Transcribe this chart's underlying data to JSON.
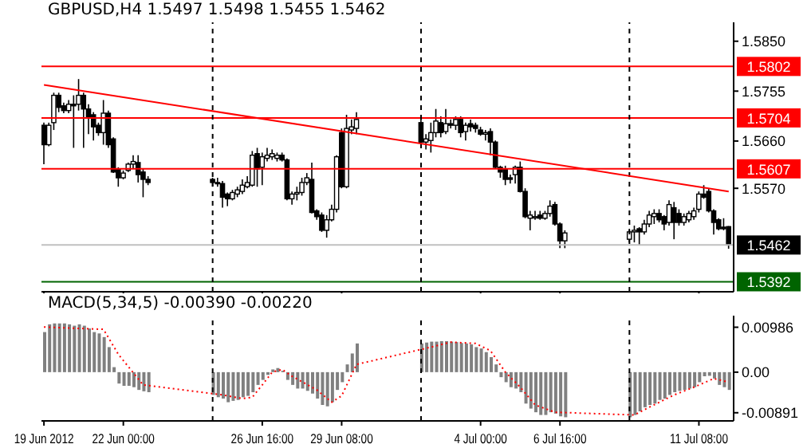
{
  "chart_data": [
    {
      "type": "candlestick",
      "title": "GBPUSD,H4  1.5497 1.5498 1.5455 1.5462",
      "tick_labels": "y",
      "xlim": [
        "2012-06-19T06:00",
        "2012-07-12T12:00"
      ],
      "xticks": [
        {
          "value": "2012-06-19T08:00",
          "label": null
        },
        {
          "value": "2012-06-22T00:00",
          "label": null
        },
        {
          "value": "2012-06-26T16:00",
          "label": null
        },
        {
          "value": "2012-06-29T08:00",
          "label": null
        },
        {
          "value": "2012-07-04T00:00",
          "label": null
        },
        {
          "value": "2012-07-06T16:00",
          "label": null
        },
        {
          "value": "2012-07-11T08:00",
          "label": null
        }
      ],
      "x": [
        "2012-06-19T08:00",
        "2012-06-19T12:00",
        "2012-06-19T16:00",
        "2012-06-19T20:00",
        "2012-06-20T00:00",
        "2012-06-20T04:00",
        "2012-06-20T08:00",
        "2012-06-20T12:00",
        "2012-06-20T16:00",
        "2012-06-20T20:00",
        "2012-06-21T00:00",
        "2012-06-21T04:00",
        "2012-06-21T08:00",
        "2012-06-21T12:00",
        "2012-06-21T16:00",
        "2012-06-21T20:00",
        "2012-06-22T00:00",
        "2012-06-22T04:00",
        "2012-06-22T08:00",
        "2012-06-22T12:00",
        "2012-06-22T16:00",
        "2012-06-22T20:00",
        "2012-06-25T00:00",
        "2012-06-25T04:00",
        "2012-06-25T08:00",
        "2012-06-25T12:00",
        "2012-06-25T16:00",
        "2012-06-25T20:00",
        "2012-06-26T00:00",
        "2012-06-26T04:00",
        "2012-06-26T08:00",
        "2012-06-26T12:00",
        "2012-06-26T16:00",
        "2012-06-26T20:00",
        "2012-06-27T00:00",
        "2012-06-27T04:00",
        "2012-06-27T08:00",
        "2012-06-27T12:00",
        "2012-06-27T16:00",
        "2012-06-27T20:00",
        "2012-06-28T00:00",
        "2012-06-28T04:00",
        "2012-06-28T08:00",
        "2012-06-28T12:00",
        "2012-06-28T16:00",
        "2012-06-28T20:00",
        "2012-06-29T00:00",
        "2012-06-29T04:00",
        "2012-06-29T08:00",
        "2012-06-29T12:00",
        "2012-06-29T16:00",
        "2012-06-29T20:00",
        "2012-07-02T00:00",
        "2012-07-02T04:00",
        "2012-07-02T08:00",
        "2012-07-02T12:00",
        "2012-07-02T16:00",
        "2012-07-02T20:00",
        "2012-07-03T00:00",
        "2012-07-03T04:00",
        "2012-07-03T08:00",
        "2012-07-03T12:00",
        "2012-07-03T16:00",
        "2012-07-03T20:00",
        "2012-07-04T00:00",
        "2012-07-04T04:00",
        "2012-07-04T08:00",
        "2012-07-04T12:00",
        "2012-07-04T16:00",
        "2012-07-04T20:00",
        "2012-07-05T00:00",
        "2012-07-05T04:00",
        "2012-07-05T08:00",
        "2012-07-05T12:00",
        "2012-07-05T16:00",
        "2012-07-05T20:00",
        "2012-07-06T00:00",
        "2012-07-06T04:00",
        "2012-07-06T08:00",
        "2012-07-06T12:00",
        "2012-07-06T16:00",
        "2012-07-06T20:00",
        "2012-07-09T00:00",
        "2012-07-09T04:00",
        "2012-07-09T08:00",
        "2012-07-09T12:00",
        "2012-07-09T16:00",
        "2012-07-09T20:00",
        "2012-07-10T00:00",
        "2012-07-10T04:00",
        "2012-07-10T08:00",
        "2012-07-10T12:00",
        "2012-07-10T16:00",
        "2012-07-10T20:00",
        "2012-07-11T00:00",
        "2012-07-11T04:00",
        "2012-07-11T08:00",
        "2012-07-11T12:00",
        "2012-07-11T16:00",
        "2012-07-11T20:00",
        "2012-07-12T00:00",
        "2012-07-12T04:00",
        "2012-07-12T08:00"
      ],
      "ohlc": [
        [
          1.569,
          1.5695,
          1.5616,
          1.5653
        ],
        [
          1.5653,
          1.5695,
          1.565,
          1.569
        ],
        [
          1.5695,
          1.5752,
          1.5681,
          1.5747
        ],
        [
          1.5747,
          1.5752,
          1.5715,
          1.5724
        ],
        [
          1.5727,
          1.5733,
          1.5713,
          1.5718
        ],
        [
          1.5718,
          1.5738,
          1.5713,
          1.573
        ],
        [
          1.573,
          1.5747,
          1.5647,
          1.5727
        ],
        [
          1.573,
          1.5778,
          1.5718,
          1.5747
        ],
        [
          1.5747,
          1.5752,
          1.5647,
          1.5721
        ],
        [
          1.5721,
          1.573,
          1.5673,
          1.5704
        ],
        [
          1.571,
          1.5715,
          1.5661,
          1.5687
        ],
        [
          1.569,
          1.5695,
          1.567,
          1.5676
        ],
        [
          1.5676,
          1.5738,
          1.5653,
          1.5713
        ],
        [
          1.5713,
          1.5718,
          1.5647,
          1.5653
        ],
        [
          1.5664,
          1.5667,
          1.5599,
          1.5601
        ],
        [
          1.5607,
          1.561,
          1.5573,
          1.559
        ],
        [
          1.559,
          1.5604,
          1.5587,
          1.5599
        ],
        [
          1.5604,
          1.5619,
          1.5601,
          1.5616
        ],
        [
          1.5616,
          1.5633,
          1.5607,
          1.5621
        ],
        [
          1.5619,
          1.5633,
          1.5581,
          1.5596
        ],
        [
          1.5601,
          1.5607,
          1.5553,
          1.5587
        ],
        [
          1.5587,
          1.5593,
          1.5576,
          1.5581
        ],
        [
          1.5587,
          1.559,
          1.5573,
          1.5581
        ],
        [
          1.5581,
          1.559,
          1.5573,
          1.5579
        ],
        [
          1.5579,
          1.5584,
          1.5533,
          1.5553
        ],
        [
          1.5559,
          1.5562,
          1.5536,
          1.555
        ],
        [
          1.555,
          1.5567,
          1.5547,
          1.5562
        ],
        [
          1.5559,
          1.5573,
          1.5553,
          1.5567
        ],
        [
          1.5564,
          1.5587,
          1.5559,
          1.5576
        ],
        [
          1.5573,
          1.5593,
          1.557,
          1.5581
        ],
        [
          1.5576,
          1.5641,
          1.5573,
          1.5633
        ],
        [
          1.5636,
          1.5647,
          1.5573,
          1.5607
        ],
        [
          1.561,
          1.5638,
          1.5576,
          1.563
        ],
        [
          1.5627,
          1.5647,
          1.5621,
          1.5633
        ],
        [
          1.563,
          1.5644,
          1.5624,
          1.5636
        ],
        [
          1.5627,
          1.5638,
          1.5621,
          1.5633
        ],
        [
          1.5633,
          1.5638,
          1.5621,
          1.5624
        ],
        [
          1.5624,
          1.5627,
          1.5547,
          1.555
        ],
        [
          1.555,
          1.5564,
          1.5539,
          1.5559
        ],
        [
          1.5559,
          1.5573,
          1.5547,
          1.5562
        ],
        [
          1.5562,
          1.559,
          1.5556,
          1.5581
        ],
        [
          1.5581,
          1.5599,
          1.5576,
          1.559
        ],
        [
          1.5587,
          1.5619,
          1.5522,
          1.5524
        ],
        [
          1.5527,
          1.553,
          1.551,
          1.5516
        ],
        [
          1.5519,
          1.5524,
          1.5487,
          1.549
        ],
        [
          1.549,
          1.5519,
          1.5476,
          1.551
        ],
        [
          1.551,
          1.5539,
          1.5507,
          1.553
        ],
        [
          1.553,
          1.5633,
          1.5524,
          1.563
        ],
        [
          1.5676,
          1.5684,
          1.557,
          1.5573
        ],
        [
          1.5573,
          1.571,
          1.557,
          1.5684
        ],
        [
          1.5681,
          1.5701,
          1.5673,
          1.5687
        ],
        [
          1.5684,
          1.5715,
          1.5673,
          1.5701
        ],
        [
          1.5695,
          1.5704,
          1.5653,
          1.5658
        ],
        [
          1.5658,
          1.5673,
          1.5644,
          1.5664
        ],
        [
          1.5661,
          1.5695,
          1.5638,
          1.5676
        ],
        [
          1.5676,
          1.5721,
          1.5667,
          1.5698
        ],
        [
          1.5695,
          1.5707,
          1.5667,
          1.5676
        ],
        [
          1.5678,
          1.5721,
          1.5673,
          1.5693
        ],
        [
          1.5693,
          1.5701,
          1.5684,
          1.569
        ],
        [
          1.569,
          1.5707,
          1.5681,
          1.5701
        ],
        [
          1.5701,
          1.5707,
          1.5667,
          1.5676
        ],
        [
          1.5678,
          1.5695,
          1.5661,
          1.569
        ],
        [
          1.5693,
          1.5701,
          1.5678,
          1.5687
        ],
        [
          1.569,
          1.5695,
          1.5676,
          1.5684
        ],
        [
          1.5681,
          1.5687,
          1.567,
          1.5673
        ],
        [
          1.5673,
          1.5681,
          1.5661,
          1.5676
        ],
        [
          1.5678,
          1.5684,
          1.5633,
          1.5658
        ],
        [
          1.5658,
          1.5661,
          1.5607,
          1.561
        ],
        [
          1.561,
          1.5613,
          1.559,
          1.5601
        ],
        [
          1.5607,
          1.5613,
          1.5576,
          1.5587
        ],
        [
          1.559,
          1.5596,
          1.5579,
          1.5587
        ],
        [
          1.5596,
          1.5613,
          1.5579,
          1.561
        ],
        [
          1.561,
          1.5621,
          1.5562,
          1.5564
        ],
        [
          1.5564,
          1.557,
          1.5513,
          1.5516
        ],
        [
          1.5513,
          1.5527,
          1.549,
          1.5519
        ],
        [
          1.5516,
          1.5527,
          1.551,
          1.5516
        ],
        [
          1.5519,
          1.5527,
          1.551,
          1.5513
        ],
        [
          1.5513,
          1.5527,
          1.551,
          1.5522
        ],
        [
          1.5522,
          1.5547,
          1.5516,
          1.5536
        ],
        [
          1.5539,
          1.5544,
          1.5499,
          1.5502
        ],
        [
          1.5502,
          1.5505,
          1.5456,
          1.547
        ],
        [
          1.547,
          1.549,
          1.5456,
          1.5485
        ],
        [
          1.5473,
          1.5493,
          1.5467,
          1.5487
        ],
        [
          1.5487,
          1.5499,
          1.5467,
          1.549
        ],
        [
          1.5493,
          1.5496,
          1.5462,
          1.5487
        ],
        [
          1.5487,
          1.551,
          1.5482,
          1.5502
        ],
        [
          1.5502,
          1.5527,
          1.5496,
          1.5519
        ],
        [
          1.5516,
          1.553,
          1.5502,
          1.5522
        ],
        [
          1.5522,
          1.553,
          1.5505,
          1.551
        ],
        [
          1.5516,
          1.5519,
          1.549,
          1.5502
        ],
        [
          1.5505,
          1.5547,
          1.5499,
          1.5539
        ],
        [
          1.5533,
          1.5544,
          1.5473,
          1.5505
        ],
        [
          1.5522,
          1.553,
          1.5499,
          1.5505
        ],
        [
          1.5505,
          1.5522,
          1.5499,
          1.5516
        ],
        [
          1.551,
          1.5527,
          1.5505,
          1.5522
        ],
        [
          1.5516,
          1.5533,
          1.551,
          1.5527
        ],
        [
          1.553,
          1.5564,
          1.5524,
          1.5559
        ],
        [
          1.5559,
          1.5576,
          1.555,
          1.5553
        ],
        [
          1.5564,
          1.557,
          1.5524,
          1.5527
        ],
        [
          1.5527,
          1.553,
          1.5482,
          1.5505
        ],
        [
          1.551,
          1.5513,
          1.549,
          1.5493
        ],
        [
          1.5496,
          1.5513,
          1.549,
          1.5493
        ],
        [
          1.5497,
          1.5498,
          1.5455,
          1.5462
        ]
      ],
      "series": [
        {
          "type": "line",
          "color": "#ff0000",
          "x": [
            "2012-06-19T08:00",
            "2012-07-12T08:00"
          ],
          "values": [
            1.5767,
            1.5564
          ]
        }
      ],
      "ylim": [
        1.5373,
        1.5886
      ],
      "yticks": [
        {
          "value": 1.585,
          "label": "1.5850"
        },
        1.5755,
        {
          "value": 1.566,
          "label": "1.5660"
        },
        {
          "value": 1.557,
          "label": "1.5570"
        }
      ],
      "ref_lines": [
        {
          "axis": "y",
          "value": 1.5802,
          "label": "1.5802",
          "color": "#ff0000"
        },
        {
          "axis": "y",
          "value": 1.5704,
          "label": "1.5704",
          "color": "#ff0000"
        },
        {
          "axis": "y",
          "value": 1.5607,
          "label": "1.5607",
          "color": "#ff0000"
        },
        {
          "axis": "y",
          "value": 1.5462,
          "label": "1.5462",
          "color": "#c0c0c0"
        },
        {
          "axis": "y",
          "value": 1.5392,
          "label": "1.5392",
          "color": "#006400"
        },
        {
          "axis": "x",
          "value": "2012-06-25T00:00",
          "color": "#000000",
          "line_style": "dashed"
        },
        {
          "axis": "x",
          "value": "2012-07-02T00:00",
          "color": "#000000",
          "line_style": "dashed"
        },
        {
          "axis": "x",
          "value": "2012-07-09T00:00",
          "color": "#000000",
          "line_style": "dashed"
        }
      ]
    },
    {
      "type": "bar",
      "title": "MACD(5,34,5) -0.00390 -0.00220",
      "xlim": [
        "2012-06-19T06:00",
        "2012-07-12T12:00"
      ],
      "x": [
        "2012-06-19T08:00",
        "2012-06-19T12:00",
        "2012-06-19T16:00",
        "2012-06-19T20:00",
        "2012-06-20T00:00",
        "2012-06-20T04:00",
        "2012-06-20T08:00",
        "2012-06-20T12:00",
        "2012-06-20T16:00",
        "2012-06-20T20:00",
        "2012-06-21T00:00",
        "2012-06-21T04:00",
        "2012-06-21T08:00",
        "2012-06-21T12:00",
        "2012-06-21T16:00",
        "2012-06-21T20:00",
        "2012-06-22T00:00",
        "2012-06-22T04:00",
        "2012-06-22T08:00",
        "2012-06-22T12:00",
        "2012-06-22T16:00",
        "2012-06-22T20:00",
        "2012-06-25T00:00",
        "2012-06-25T04:00",
        "2012-06-25T08:00",
        "2012-06-25T12:00",
        "2012-06-25T16:00",
        "2012-06-25T20:00",
        "2012-06-26T00:00",
        "2012-06-26T04:00",
        "2012-06-26T08:00",
        "2012-06-26T12:00",
        "2012-06-26T16:00",
        "2012-06-26T20:00",
        "2012-06-27T00:00",
        "2012-06-27T04:00",
        "2012-06-27T08:00",
        "2012-06-27T12:00",
        "2012-06-27T16:00",
        "2012-06-27T20:00",
        "2012-06-28T00:00",
        "2012-06-28T04:00",
        "2012-06-28T08:00",
        "2012-06-28T12:00",
        "2012-06-28T16:00",
        "2012-06-28T20:00",
        "2012-06-29T00:00",
        "2012-06-29T04:00",
        "2012-06-29T08:00",
        "2012-06-29T12:00",
        "2012-06-29T16:00",
        "2012-06-29T20:00",
        "2012-07-02T00:00",
        "2012-07-02T04:00",
        "2012-07-02T08:00",
        "2012-07-02T12:00",
        "2012-07-02T16:00",
        "2012-07-02T20:00",
        "2012-07-03T00:00",
        "2012-07-03T04:00",
        "2012-07-03T08:00",
        "2012-07-03T12:00",
        "2012-07-03T16:00",
        "2012-07-03T20:00",
        "2012-07-04T00:00",
        "2012-07-04T04:00",
        "2012-07-04T08:00",
        "2012-07-04T12:00",
        "2012-07-04T16:00",
        "2012-07-04T20:00",
        "2012-07-05T00:00",
        "2012-07-05T04:00",
        "2012-07-05T08:00",
        "2012-07-05T12:00",
        "2012-07-05T16:00",
        "2012-07-05T20:00",
        "2012-07-06T00:00",
        "2012-07-06T04:00",
        "2012-07-06T08:00",
        "2012-07-06T12:00",
        "2012-07-06T16:00",
        "2012-07-06T20:00",
        "2012-07-09T00:00",
        "2012-07-09T04:00",
        "2012-07-09T08:00",
        "2012-07-09T12:00",
        "2012-07-09T16:00",
        "2012-07-09T20:00",
        "2012-07-10T00:00",
        "2012-07-10T04:00",
        "2012-07-10T08:00",
        "2012-07-10T12:00",
        "2012-07-10T16:00",
        "2012-07-10T20:00",
        "2012-07-11T00:00",
        "2012-07-11T04:00",
        "2012-07-11T08:00",
        "2012-07-11T12:00",
        "2012-07-11T16:00",
        "2012-07-11T20:00",
        "2012-07-12T00:00",
        "2012-07-12T04:00",
        "2012-07-12T08:00"
      ],
      "series": [
        {
          "type": "bar",
          "color": "#808080",
          "values": [
            0.0088,
            0.0105,
            0.0107,
            0.0107,
            0.0107,
            0.0105,
            0.0102,
            0.0105,
            0.0102,
            0.0096,
            0.0088,
            0.0085,
            0.0077,
            0.0055,
            0.0011,
            -0.0025,
            -0.003,
            -0.003,
            -0.0033,
            -0.0039,
            -0.0042,
            -0.0044,
            -0.005,
            -0.0055,
            -0.0058,
            -0.0066,
            -0.0063,
            -0.0061,
            -0.0055,
            -0.0052,
            -0.0044,
            -0.0028,
            -0.0017,
            -0.0006,
            0.0006,
            0.0009,
            0.0003,
            -0.0017,
            -0.0028,
            -0.0036,
            -0.0036,
            -0.0041,
            -0.0047,
            -0.0058,
            -0.0072,
            -0.0075,
            -0.0066,
            -0.0039,
            -0.0022,
            0.0017,
            0.0041,
            0.0063,
            0.0063,
            0.0065,
            0.0067,
            0.0067,
            0.0068,
            0.0068,
            0.0067,
            0.0066,
            0.0064,
            0.0063,
            0.0061,
            0.0055,
            0.0052,
            0.0044,
            0.0033,
            0.0017,
            -0.0011,
            -0.0022,
            -0.0033,
            -0.0036,
            -0.0044,
            -0.0069,
            -0.008,
            -0.0088,
            -0.0094,
            -0.0094,
            -0.0088,
            -0.0091,
            -0.0097,
            -0.0099,
            -0.0099,
            -0.0094,
            -0.0086,
            -0.0077,
            -0.0072,
            -0.0069,
            -0.0061,
            -0.0058,
            -0.005,
            -0.0044,
            -0.0041,
            -0.0039,
            -0.0036,
            -0.0033,
            -0.0022,
            -0.0009,
            -0.0008,
            -0.0014,
            -0.0028,
            -0.0033,
            -0.0039
          ]
        },
        {
          "type": "line",
          "color": "#ff0000",
          "line_style": "dotted",
          "x": [
            "2012-06-19T08:00",
            "2012-06-21T08:00",
            "2012-06-21T20:00",
            "2012-06-22T16:00",
            "2012-06-25T08:00",
            "2012-06-26T00:00",
            "2012-06-26T08:00",
            "2012-06-26T16:00",
            "2012-06-27T00:00",
            "2012-06-27T08:00",
            "2012-06-27T16:00",
            "2012-06-28T12:00",
            "2012-06-29T00:00",
            "2012-06-29T08:00",
            "2012-06-29T20:00",
            "2012-07-02T08:00",
            "2012-07-03T00:00",
            "2012-07-03T20:00",
            "2012-07-04T08:00",
            "2012-07-04T20:00",
            "2012-07-05T08:00",
            "2012-07-05T20:00",
            "2012-07-06T12:00",
            "2012-07-09T04:00",
            "2012-07-09T16:00",
            "2012-07-10T12:00",
            "2012-07-11T04:00",
            "2012-07-11T20:00",
            "2012-07-12T08:00"
          ],
          "values": [
            0.0099,
            0.0094,
            0.0039,
            -0.0028,
            -0.005,
            -0.0058,
            -0.0055,
            -0.0028,
            0.0,
            0.0006,
            -0.0009,
            -0.0039,
            -0.0066,
            -0.0052,
            0.0017,
            0.0055,
            0.0066,
            0.0063,
            0.0047,
            0.0,
            -0.0033,
            -0.0072,
            -0.0088,
            -0.0094,
            -0.0077,
            -0.005,
            -0.0033,
            -0.0014,
            -0.0022
          ]
        }
      ],
      "ylim": [
        -0.0107,
        0.0124
      ],
      "yticks": [
        0.00986,
        {
          "value": 0,
          "label": "0.00"
        },
        -0.00891
      ],
      "xticks": [
        {
          "value": "2012-06-19T08:00",
          "label": "19 Jun 2012"
        },
        {
          "value": "2012-06-22T00:00",
          "label": "22 Jun 00:00"
        },
        {
          "value": "2012-06-26T16:00",
          "label": "26 Jun 16:00"
        },
        {
          "value": "2012-06-29T08:00",
          "label": "29 Jun 08:00"
        },
        {
          "value": "2012-07-04T00:00",
          "label": "4 Jul 00:00"
        },
        {
          "value": "2012-07-06T16:00",
          "label": "6 Jul 16:00"
        },
        {
          "value": "2012-07-11T08:00",
          "label": "11 Jul 08:00"
        }
      ],
      "ref_lines": [
        {
          "axis": "x",
          "value": "2012-06-25T00:00",
          "color": "#000000",
          "line_style": "dashed"
        },
        {
          "axis": "x",
          "value": "2012-07-02T00:00",
          "color": "#000000",
          "line_style": "dashed"
        },
        {
          "axis": "x",
          "value": "2012-07-09T00:00",
          "color": "#000000",
          "line_style": "dashed"
        }
      ]
    }
  ]
}
